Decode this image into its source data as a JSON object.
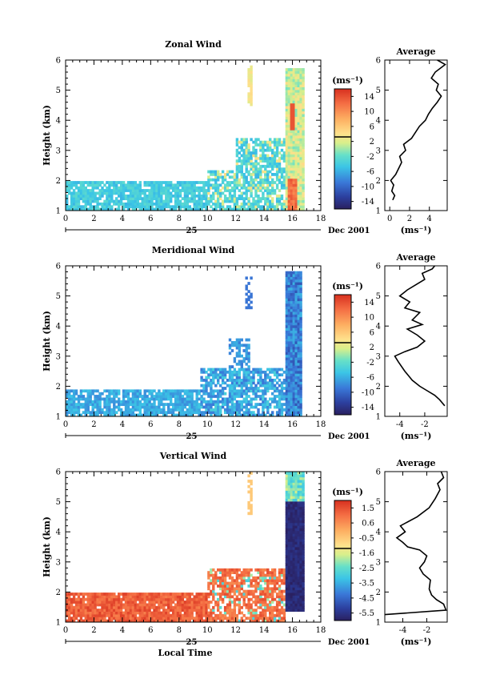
{
  "chart_data": [
    {
      "type": "heatmap",
      "title": "Zonal Wind",
      "ylabel": "Height (km)",
      "xlim": [
        0,
        18
      ],
      "ylim": [
        1,
        6
      ],
      "x_ticks": [
        0,
        2,
        4,
        6,
        8,
        10,
        12,
        14,
        16,
        18
      ],
      "y_ticks": [
        1,
        2,
        3,
        4,
        5,
        6
      ],
      "date_label": "25",
      "month_label": "Dec 2001",
      "colorbar": {
        "unit": "(ms⁻¹)",
        "ticks": [
          "14",
          "10",
          "6",
          "2",
          "-2",
          "-6",
          "-10",
          "-14"
        ],
        "min": -14,
        "max": 14
      },
      "field": {
        "kind": "zonal",
        "lo": -14,
        "hi": 14
      },
      "profile": {
        "title": "Average",
        "xlabel": "(ms⁻¹)",
        "xlim": [
          -0.5,
          5.8
        ],
        "x_ticks": [
          0,
          2,
          4
        ],
        "ylim": [
          1,
          6
        ],
        "y_ticks": [
          1,
          2,
          3,
          4,
          5,
          6
        ],
        "points": [
          [
            0.3,
            1.35
          ],
          [
            0.5,
            1.5
          ],
          [
            0.2,
            1.65
          ],
          [
            0.4,
            1.85
          ],
          [
            0.1,
            2.0
          ],
          [
            0.6,
            2.2
          ],
          [
            0.9,
            2.4
          ],
          [
            1.2,
            2.6
          ],
          [
            1.0,
            2.8
          ],
          [
            1.6,
            3.0
          ],
          [
            1.4,
            3.2
          ],
          [
            2.2,
            3.4
          ],
          [
            2.6,
            3.6
          ],
          [
            3.0,
            3.8
          ],
          [
            3.6,
            4.0
          ],
          [
            3.9,
            4.2
          ],
          [
            4.3,
            4.4
          ],
          [
            4.8,
            4.6
          ],
          [
            5.2,
            4.8
          ],
          [
            4.7,
            5.0
          ],
          [
            4.9,
            5.2
          ],
          [
            4.2,
            5.4
          ],
          [
            4.6,
            5.6
          ],
          [
            5.6,
            5.85
          ],
          [
            4.8,
            6.0
          ]
        ]
      }
    },
    {
      "type": "heatmap",
      "title": "Meridional Wind",
      "ylabel": "Height (km)",
      "xlim": [
        0,
        18
      ],
      "ylim": [
        1,
        6
      ],
      "x_ticks": [
        0,
        2,
        4,
        6,
        8,
        10,
        12,
        14,
        16,
        18
      ],
      "y_ticks": [
        1,
        2,
        3,
        4,
        5,
        6
      ],
      "date_label": "25",
      "month_label": "Dec 2001",
      "colorbar": {
        "unit": "(ms⁻¹)",
        "ticks": [
          "14",
          "10",
          "6",
          "2",
          "-2",
          "-6",
          "-10",
          "-14"
        ],
        "min": -14,
        "max": 14
      },
      "field": {
        "kind": "meridional",
        "lo": -14,
        "hi": 14
      },
      "profile": {
        "title": "Average",
        "xlabel": "(ms⁻¹)",
        "xlim": [
          -5.2,
          -0.2
        ],
        "x_ticks": [
          -4,
          -2
        ],
        "ylim": [
          1,
          6
        ],
        "y_ticks": [
          1,
          2,
          3,
          4,
          5,
          6
        ],
        "points": [
          [
            -0.4,
            1.35
          ],
          [
            -0.8,
            1.55
          ],
          [
            -1.2,
            1.7
          ],
          [
            -1.8,
            1.85
          ],
          [
            -2.4,
            2.0
          ],
          [
            -3.0,
            2.2
          ],
          [
            -3.6,
            2.5
          ],
          [
            -4.1,
            2.8
          ],
          [
            -4.4,
            3.0
          ],
          [
            -3.6,
            3.15
          ],
          [
            -2.6,
            3.3
          ],
          [
            -2.0,
            3.5
          ],
          [
            -2.6,
            3.7
          ],
          [
            -3.4,
            3.9
          ],
          [
            -2.2,
            4.05
          ],
          [
            -3.0,
            4.2
          ],
          [
            -2.4,
            4.45
          ],
          [
            -3.6,
            4.6
          ],
          [
            -3.2,
            4.8
          ],
          [
            -4.0,
            5.0
          ],
          [
            -3.4,
            5.2
          ],
          [
            -2.6,
            5.4
          ],
          [
            -2.0,
            5.55
          ],
          [
            -2.2,
            5.75
          ],
          [
            -1.4,
            5.9
          ],
          [
            -1.2,
            6.0
          ]
        ]
      }
    },
    {
      "type": "heatmap",
      "title": "Vertical Wind",
      "xlabel": "Local Time",
      "ylabel": "Height (km)",
      "xlim": [
        0,
        18
      ],
      "ylim": [
        1,
        6
      ],
      "x_ticks": [
        0,
        2,
        4,
        6,
        8,
        10,
        12,
        14,
        16,
        18
      ],
      "y_ticks": [
        1,
        2,
        3,
        4,
        5,
        6
      ],
      "date_label": "25",
      "month_label": "Dec 2001",
      "colorbar": {
        "unit": "(ms⁻¹)",
        "ticks": [
          "1.5",
          "0.6",
          "-0.5",
          "-1.6",
          "-2.5",
          "-3.5",
          "-4.5",
          "-5.5"
        ],
        "min": -5.5,
        "max": 1.5
      },
      "field": {
        "kind": "vertical",
        "lo": -5.5,
        "hi": 1.5
      },
      "profile": {
        "title": "Average",
        "xlabel": "(ms⁻¹)",
        "xlim": [
          -5.5,
          -0.3
        ],
        "x_ticks": [
          -4,
          -2
        ],
        "ylim": [
          1,
          6
        ],
        "y_ticks": [
          1,
          2,
          3,
          4,
          5,
          6
        ],
        "points": [
          [
            -5.5,
            1.25
          ],
          [
            -0.4,
            1.4
          ],
          [
            -0.6,
            1.6
          ],
          [
            -1.2,
            1.75
          ],
          [
            -1.6,
            1.9
          ],
          [
            -1.8,
            2.1
          ],
          [
            -1.7,
            2.4
          ],
          [
            -2.3,
            2.6
          ],
          [
            -2.6,
            2.8
          ],
          [
            -2.2,
            3.0
          ],
          [
            -2.0,
            3.2
          ],
          [
            -2.6,
            3.4
          ],
          [
            -3.6,
            3.5
          ],
          [
            -4.0,
            3.65
          ],
          [
            -4.5,
            3.8
          ],
          [
            -3.8,
            4.0
          ],
          [
            -4.2,
            4.2
          ],
          [
            -2.8,
            4.5
          ],
          [
            -1.8,
            4.8
          ],
          [
            -1.3,
            5.1
          ],
          [
            -0.9,
            5.4
          ],
          [
            -1.1,
            5.6
          ],
          [
            -0.6,
            5.8
          ],
          [
            -0.8,
            6.0
          ]
        ]
      }
    }
  ]
}
